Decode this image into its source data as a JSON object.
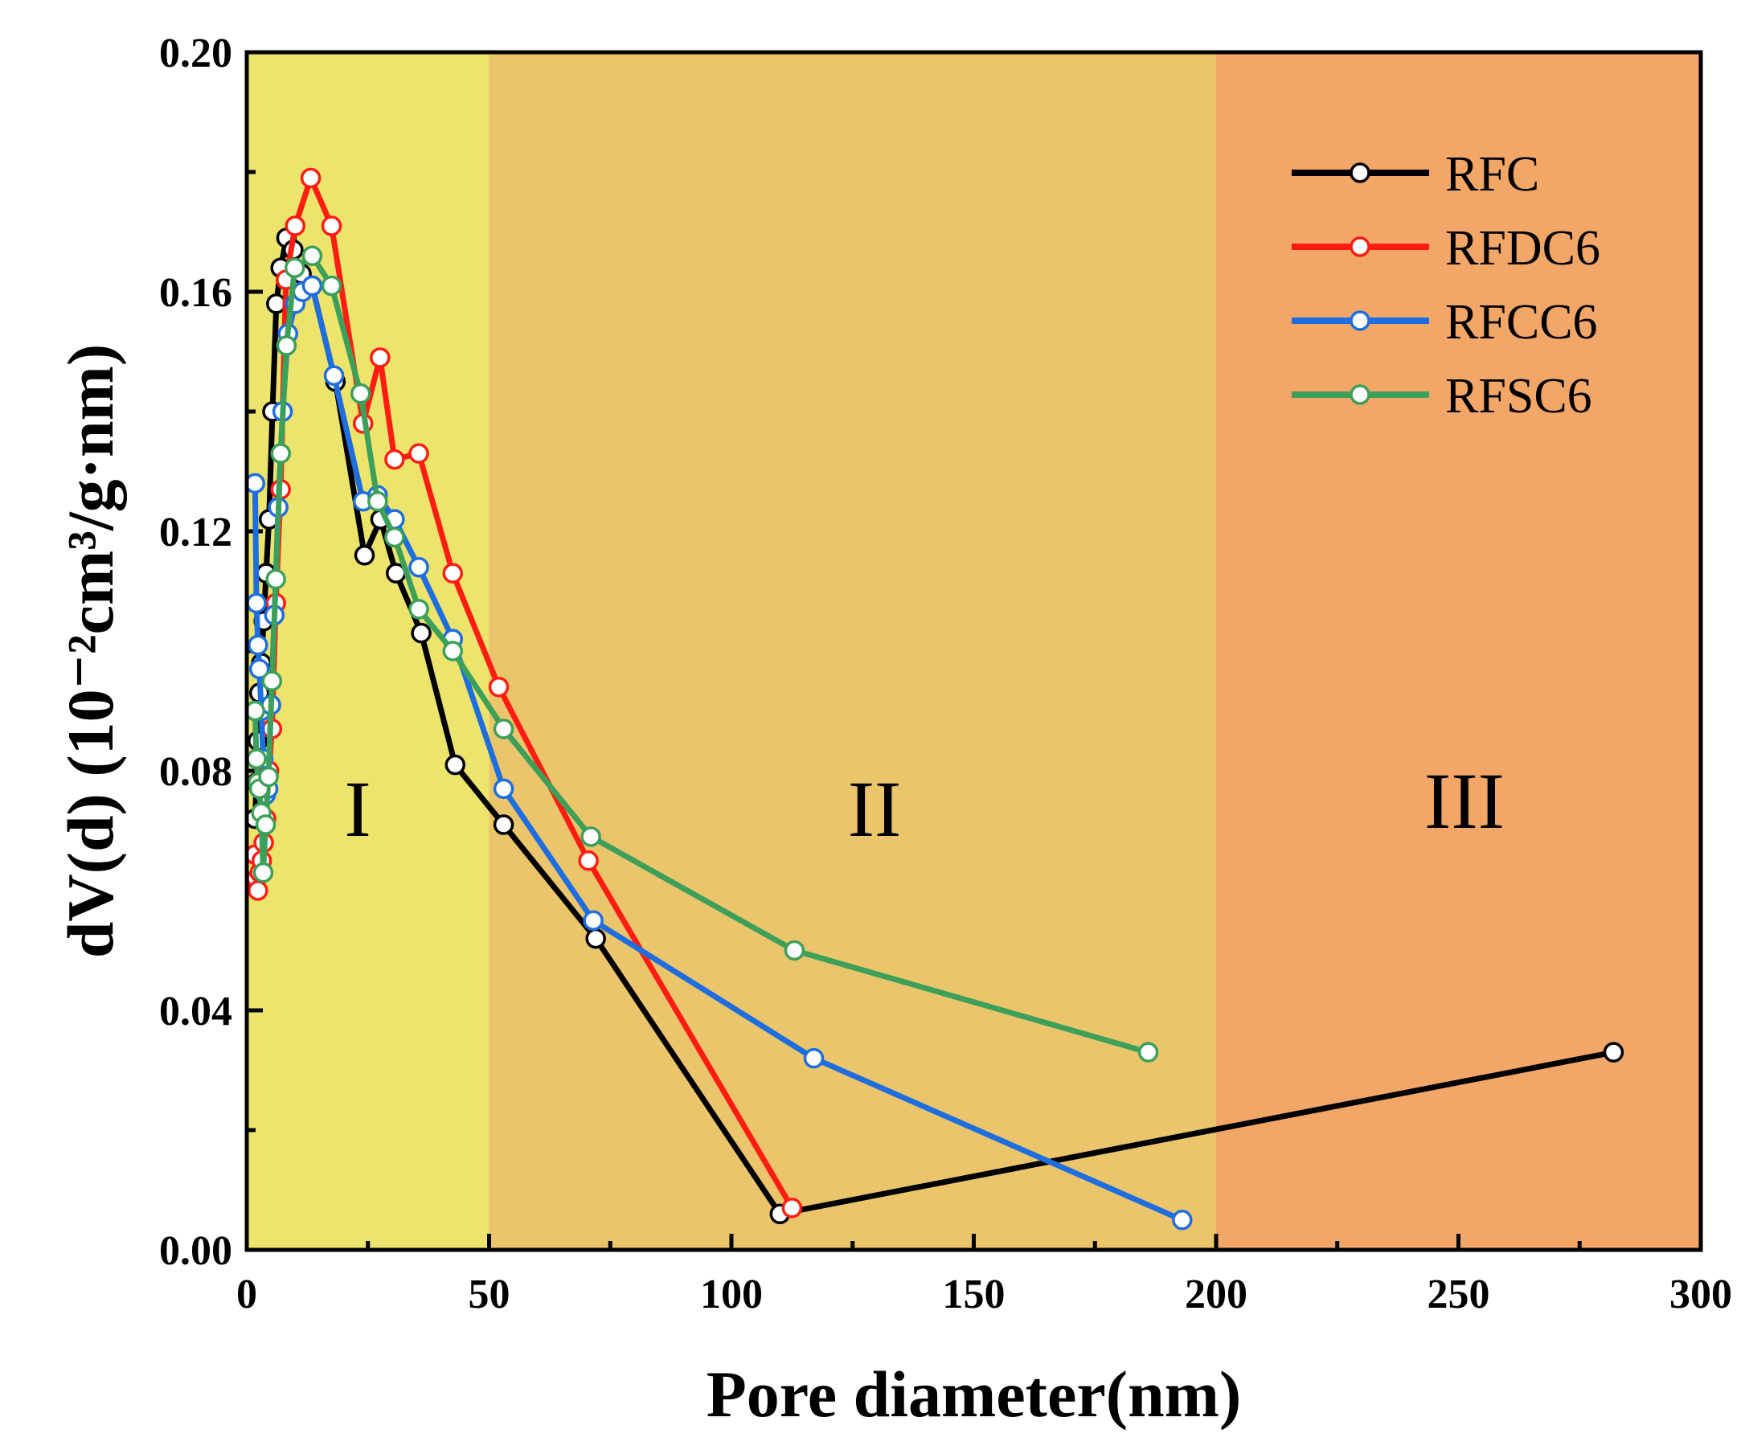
{
  "chart_data": {
    "type": "line",
    "xlabel": "Pore diameter(nm)",
    "ylabel": "dV(d) (10⁻²cm³/g·nm)",
    "xlim": [
      0,
      300
    ],
    "ylim": [
      0,
      0.2
    ],
    "x_ticks": [
      0,
      50,
      100,
      150,
      200,
      250,
      300
    ],
    "x_tick_labels": [
      "0",
      "50",
      "100",
      "150",
      "200",
      "250",
      "300"
    ],
    "y_ticks": [
      0,
      0.04,
      0.08,
      0.12,
      0.16,
      0.2
    ],
    "y_tick_labels": [
      "0.00",
      "0.04",
      "0.08",
      "0.12",
      "0.16",
      "0.20"
    ],
    "regions": [
      {
        "label": "I",
        "x_range": [
          0,
          50
        ],
        "color": "#ece46d"
      },
      {
        "label": "II",
        "x_range": [
          50,
          200
        ],
        "color": "#ebc56b"
      },
      {
        "label": "III",
        "x_range": [
          200,
          300
        ],
        "color": "#f2a667"
      }
    ],
    "legend_position": "top-right",
    "series": [
      {
        "name": "RFC",
        "color": "#000000",
        "x": [
          1.7,
          2.0,
          2.3,
          2.6,
          3.0,
          3.5,
          4.0,
          4.6,
          5.3,
          6.1,
          7.0,
          8.2,
          9.6,
          11.3,
          13.5,
          18.3,
          24.3,
          27.6,
          30.8,
          36.0,
          43.0,
          53.0,
          72.0,
          110.0,
          282.0
        ],
        "y": [
          0.072,
          0.078,
          0.085,
          0.093,
          0.098,
          0.105,
          0.113,
          0.122,
          0.14,
          0.158,
          0.164,
          0.169,
          0.167,
          0.163,
          0.161,
          0.145,
          0.116,
          0.122,
          0.113,
          0.103,
          0.081,
          0.071,
          0.052,
          0.006,
          0.033
        ]
      },
      {
        "name": "RFDC6",
        "color": "#ff1c12",
        "x": [
          1.7,
          2.0,
          2.3,
          2.7,
          3.1,
          3.5,
          4.0,
          4.6,
          5.2,
          6.0,
          7.0,
          8.1,
          10.0,
          13.2,
          17.5,
          24.0,
          27.5,
          30.5,
          35.5,
          42.5,
          52.0,
          70.5,
          112.5
        ],
        "y": [
          0.066,
          0.062,
          0.06,
          0.063,
          0.065,
          0.068,
          0.072,
          0.08,
          0.087,
          0.108,
          0.127,
          0.162,
          0.171,
          0.179,
          0.171,
          0.138,
          0.149,
          0.132,
          0.133,
          0.113,
          0.094,
          0.065,
          0.007
        ]
      },
      {
        "name": "RFCC6",
        "color": "#1f6ee0",
        "x": [
          1.7,
          2.0,
          2.3,
          2.6,
          3.0,
          3.4,
          3.9,
          4.4,
          5.0,
          5.7,
          6.5,
          7.4,
          8.5,
          10.0,
          11.5,
          13.5,
          18.0,
          24.0,
          27.0,
          30.5,
          35.5,
          42.5,
          53.0,
          71.5,
          117.0,
          193.0
        ],
        "y": [
          0.128,
          0.108,
          0.101,
          0.097,
          0.09,
          0.082,
          0.076,
          0.077,
          0.091,
          0.106,
          0.124,
          0.14,
          0.153,
          0.158,
          0.16,
          0.161,
          0.146,
          0.125,
          0.126,
          0.122,
          0.114,
          0.102,
          0.077,
          0.055,
          0.032,
          0.005
        ]
      },
      {
        "name": "RFSC6",
        "color": "#3da05a",
        "x": [
          1.7,
          2.0,
          2.3,
          2.6,
          3.0,
          3.4,
          3.9,
          4.5,
          5.2,
          6.0,
          7.0,
          8.2,
          9.9,
          13.5,
          17.5,
          23.5,
          27.0,
          30.5,
          35.5,
          42.5,
          53.0,
          71.0,
          113.0,
          186.0
        ],
        "y": [
          0.09,
          0.082,
          0.078,
          0.077,
          0.073,
          0.063,
          0.071,
          0.079,
          0.095,
          0.112,
          0.133,
          0.151,
          0.164,
          0.166,
          0.161,
          0.143,
          0.125,
          0.119,
          0.107,
          0.1,
          0.087,
          0.069,
          0.05,
          0.033
        ]
      }
    ]
  }
}
